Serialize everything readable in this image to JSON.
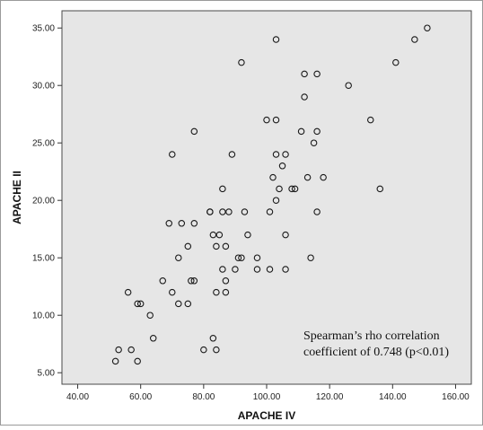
{
  "chart_data": {
    "type": "scatter",
    "title": "",
    "xlabel": "APACHE IV",
    "ylabel": "APACHE II",
    "xlim": [
      35,
      165
    ],
    "ylim": [
      4.0,
      36.5
    ],
    "grid": false,
    "legend": "none",
    "xticks": [
      "40.00",
      "60.00",
      "80.00",
      "100.00",
      "120.00",
      "140.00",
      "160.00"
    ],
    "yticks": [
      "5.00",
      "10.00",
      "15.00",
      "20.00",
      "25.00",
      "30.00",
      "35.00"
    ],
    "annotation": {
      "line1": "Spearman’s rho correlation",
      "line2": "coefficient of 0.748 (p<0.01)"
    },
    "colors": {
      "plot_bg": "#e6e6e6",
      "marker_edge": "#1a1a1a",
      "outer_bg": "#ffffff"
    },
    "points": [
      {
        "x": 52,
        "y": 6
      },
      {
        "x": 53,
        "y": 7
      },
      {
        "x": 57,
        "y": 7
      },
      {
        "x": 59,
        "y": 6
      },
      {
        "x": 56,
        "y": 12
      },
      {
        "x": 59,
        "y": 11
      },
      {
        "x": 60,
        "y": 11
      },
      {
        "x": 63,
        "y": 10
      },
      {
        "x": 64,
        "y": 8
      },
      {
        "x": 67,
        "y": 13
      },
      {
        "x": 70,
        "y": 12
      },
      {
        "x": 72,
        "y": 15
      },
      {
        "x": 72,
        "y": 11
      },
      {
        "x": 69,
        "y": 18
      },
      {
        "x": 73,
        "y": 18
      },
      {
        "x": 75,
        "y": 16
      },
      {
        "x": 75,
        "y": 11
      },
      {
        "x": 76,
        "y": 13
      },
      {
        "x": 77,
        "y": 18
      },
      {
        "x": 77,
        "y": 13
      },
      {
        "x": 70,
        "y": 24
      },
      {
        "x": 77,
        "y": 26
      },
      {
        "x": 80,
        "y": 7
      },
      {
        "x": 82,
        "y": 19
      },
      {
        "x": 82,
        "y": 19
      },
      {
        "x": 83,
        "y": 8
      },
      {
        "x": 83,
        "y": 17
      },
      {
        "x": 84,
        "y": 16
      },
      {
        "x": 84,
        "y": 12
      },
      {
        "x": 84,
        "y": 7
      },
      {
        "x": 85,
        "y": 17
      },
      {
        "x": 86,
        "y": 19
      },
      {
        "x": 86,
        "y": 14
      },
      {
        "x": 86,
        "y": 21
      },
      {
        "x": 87,
        "y": 13
      },
      {
        "x": 87,
        "y": 16
      },
      {
        "x": 87,
        "y": 12
      },
      {
        "x": 88,
        "y": 19
      },
      {
        "x": 89,
        "y": 24
      },
      {
        "x": 90,
        "y": 14
      },
      {
        "x": 91,
        "y": 15
      },
      {
        "x": 92,
        "y": 15
      },
      {
        "x": 92,
        "y": 32
      },
      {
        "x": 93,
        "y": 19
      },
      {
        "x": 94,
        "y": 17
      },
      {
        "x": 97,
        "y": 15
      },
      {
        "x": 97,
        "y": 14
      },
      {
        "x": 100,
        "y": 27
      },
      {
        "x": 101,
        "y": 14
      },
      {
        "x": 101,
        "y": 19
      },
      {
        "x": 102,
        "y": 22
      },
      {
        "x": 103,
        "y": 27
      },
      {
        "x": 103,
        "y": 34
      },
      {
        "x": 103,
        "y": 24
      },
      {
        "x": 103,
        "y": 20
      },
      {
        "x": 104,
        "y": 21
      },
      {
        "x": 105,
        "y": 23
      },
      {
        "x": 106,
        "y": 17
      },
      {
        "x": 106,
        "y": 14
      },
      {
        "x": 106,
        "y": 24
      },
      {
        "x": 108,
        "y": 21
      },
      {
        "x": 109,
        "y": 21
      },
      {
        "x": 111,
        "y": 26
      },
      {
        "x": 112,
        "y": 31
      },
      {
        "x": 112,
        "y": 29
      },
      {
        "x": 113,
        "y": 22
      },
      {
        "x": 114,
        "y": 15
      },
      {
        "x": 115,
        "y": 25
      },
      {
        "x": 116,
        "y": 31
      },
      {
        "x": 116,
        "y": 26
      },
      {
        "x": 116,
        "y": 19
      },
      {
        "x": 118,
        "y": 22
      },
      {
        "x": 126,
        "y": 30
      },
      {
        "x": 133,
        "y": 27
      },
      {
        "x": 136,
        "y": 21
      },
      {
        "x": 141,
        "y": 32
      },
      {
        "x": 147,
        "y": 34
      },
      {
        "x": 151,
        "y": 35
      }
    ]
  }
}
